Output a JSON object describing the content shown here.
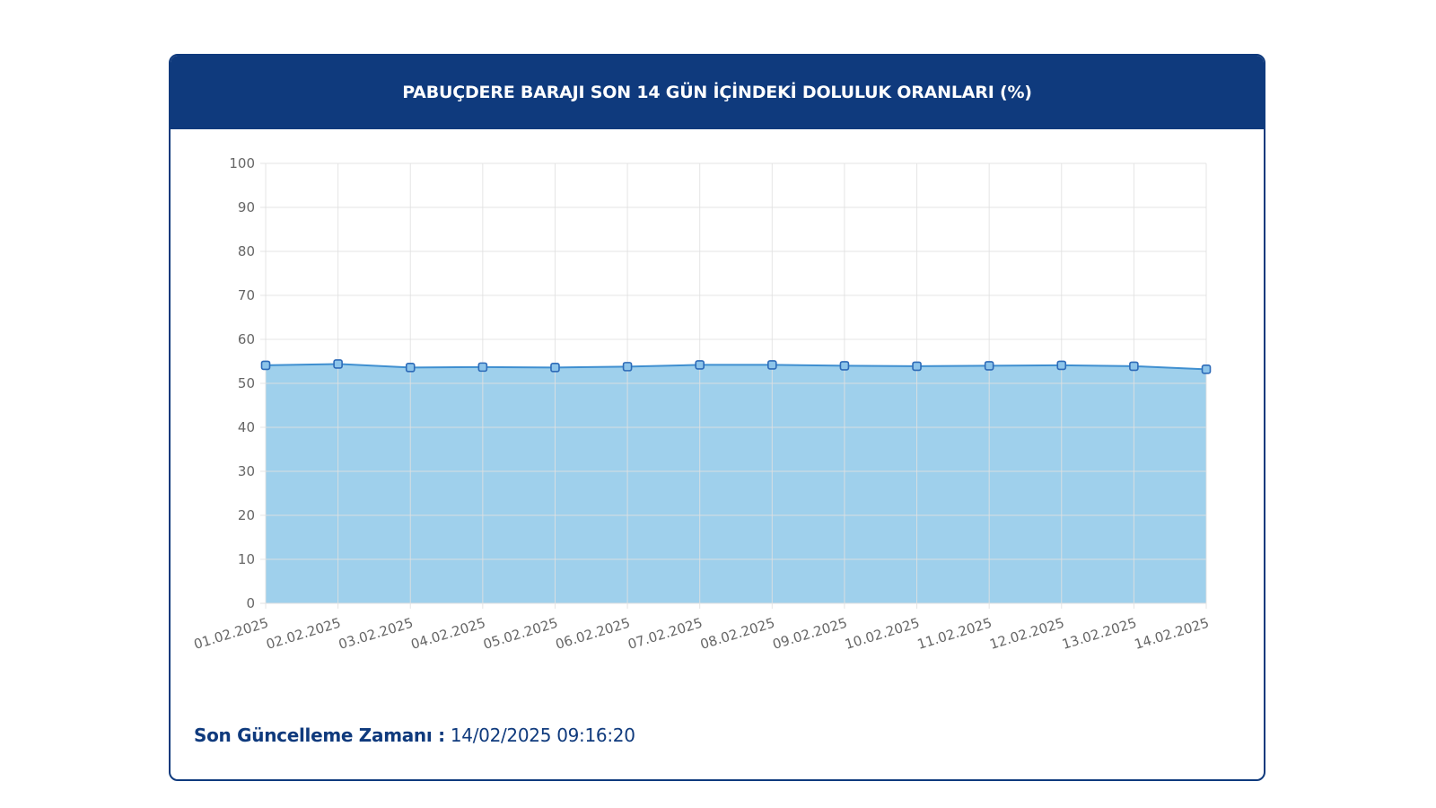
{
  "header": {
    "title": "PABUÇDERE BARAJI SON 14 GÜN İÇİNDEKİ DOLULUK ORANLARI (%)"
  },
  "footer": {
    "label": "Son Güncelleme Zamanı :",
    "value": "14/02/2025 09:16:20"
  },
  "colors": {
    "header_bg": "#0f3a7d",
    "area_fill": "#9fd0ec",
    "line": "#3f8fd0",
    "marker": "#2e6bb8",
    "grid": "#e1e1e1"
  },
  "chart_data": {
    "type": "area",
    "title": "PABUÇDERE BARAJI SON 14 GÜN İÇİNDEKİ DOLULUK ORANLARI (%)",
    "xlabel": "",
    "ylabel": "",
    "ylim": [
      0,
      100
    ],
    "yticks": [
      0,
      10,
      20,
      30,
      40,
      50,
      60,
      70,
      80,
      90,
      100
    ],
    "grid": true,
    "legend": "none",
    "categories": [
      "01.02.2025",
      "02.02.2025",
      "03.02.2025",
      "04.02.2025",
      "05.02.2025",
      "06.02.2025",
      "07.02.2025",
      "08.02.2025",
      "09.02.2025",
      "10.02.2025",
      "11.02.2025",
      "12.02.2025",
      "13.02.2025",
      "14.02.2025"
    ],
    "series": [
      {
        "values": [
          54.1,
          54.4,
          53.6,
          53.7,
          53.6,
          53.8,
          54.2,
          54.2,
          54.0,
          53.9,
          54.0,
          54.1,
          53.9,
          53.2
        ]
      }
    ]
  }
}
